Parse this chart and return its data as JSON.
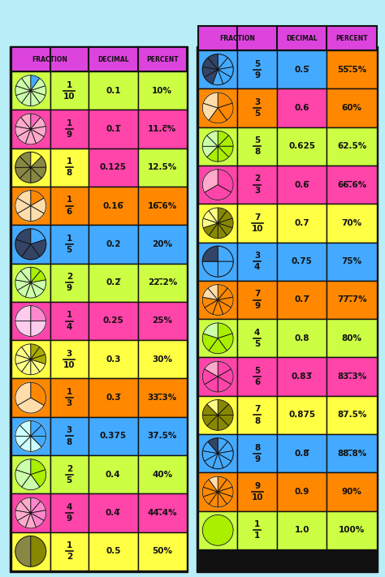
{
  "background_color": "#b8eef8",
  "header_color": "#dd44dd",
  "panel_left": {
    "rows": [
      {
        "fraction": [
          "1",
          "10"
        ],
        "decimal": "0.1",
        "percent": "10%",
        "colors": [
          "#ccff44",
          "#ccff44",
          "#ccff44",
          "#ccff44"
        ]
      },
      {
        "fraction": [
          "1",
          "9"
        ],
        "decimal": "0.1̅",
        "percent": "11.ᴄ̅%",
        "colors": [
          "#ff44aa",
          "#ff44aa",
          "#ff44aa",
          "#ff44aa"
        ]
      },
      {
        "fraction": [
          "1",
          "8"
        ],
        "decimal": "0.125",
        "percent": "12.5%",
        "colors": [
          "#ffff44",
          "#ffff44",
          "#ff44aa",
          "#ccff44"
        ]
      },
      {
        "fraction": [
          "1",
          "6"
        ],
        "decimal": "0.16̅",
        "percent": "16.̅6%",
        "colors": [
          "#ff8800",
          "#ff8800",
          "#ff8800",
          "#ff8800"
        ]
      },
      {
        "fraction": [
          "1",
          "5"
        ],
        "decimal": "0.2",
        "percent": "20%",
        "colors": [
          "#44aaff",
          "#44aaff",
          "#44aaff",
          "#44aaff"
        ]
      },
      {
        "fraction": [
          "2",
          "9"
        ],
        "decimal": "0.2̅",
        "percent": "22.̅2%",
        "colors": [
          "#ccff44",
          "#ccff44",
          "#ccff44",
          "#ccff44"
        ]
      },
      {
        "fraction": [
          "1",
          "4"
        ],
        "decimal": "0.25",
        "percent": "25%",
        "colors": [
          "#ff44aa",
          "#ff44aa",
          "#ff44aa",
          "#ff44aa"
        ]
      },
      {
        "fraction": [
          "3",
          "10"
        ],
        "decimal": "0.3",
        "percent": "30%",
        "colors": [
          "#ffff44",
          "#ffff44",
          "#ffff44",
          "#ffff44"
        ]
      },
      {
        "fraction": [
          "1",
          "3"
        ],
        "decimal": "0.3̅",
        "percent": "33.̅3%",
        "colors": [
          "#ff8800",
          "#ff8800",
          "#ff8800",
          "#ff8800"
        ]
      },
      {
        "fraction": [
          "3",
          "8"
        ],
        "decimal": "0.375",
        "percent": "37.5%",
        "colors": [
          "#44aaff",
          "#44aaff",
          "#44aaff",
          "#44aaff"
        ]
      },
      {
        "fraction": [
          "2",
          "5"
        ],
        "decimal": "0.4",
        "percent": "40%",
        "colors": [
          "#ccff44",
          "#ccff44",
          "#ccff44",
          "#ccff44"
        ]
      },
      {
        "fraction": [
          "4",
          "9"
        ],
        "decimal": "0.4̅",
        "percent": "44.̅4%",
        "colors": [
          "#ff44aa",
          "#ff44aa",
          "#ff44aa",
          "#ff44aa"
        ]
      },
      {
        "fraction": [
          "1",
          "2"
        ],
        "decimal": "0.5",
        "percent": "50%",
        "colors": [
          "#ffff44",
          "#ffff44",
          "#ffff44",
          "#ffff44"
        ]
      }
    ],
    "pie_numerators": [
      1,
      1,
      1,
      1,
      1,
      2,
      1,
      3,
      1,
      3,
      2,
      4,
      1
    ],
    "pie_denominators": [
      10,
      9,
      8,
      6,
      5,
      9,
      4,
      10,
      3,
      8,
      5,
      9,
      2
    ],
    "pie_fill": [
      "#44aaff",
      "#ff66bb",
      "#ffff44",
      "#ff8800",
      "#44aaff",
      "#aaee00",
      "#ff88cc",
      "#aaaa00",
      "#ff8800",
      "#44aaff",
      "#aaee00",
      "#ff88cc",
      "#888800"
    ],
    "pie_bg": [
      "#ccffaa",
      "#ffaacc",
      "#888844",
      "#ffddaa",
      "#334466",
      "#ccffaa",
      "#ffccee",
      "#ffff88",
      "#ffddaa",
      "#ccffff",
      "#ccffaa",
      "#ffaacc",
      "#888844"
    ]
  },
  "panel_right": {
    "rows": [
      {
        "fraction": [
          "5",
          "9"
        ],
        "decimal": "0.5̅",
        "percent": "55.̅5%",
        "colors": [
          "#44aaff",
          "#44aaff",
          "#44aaff",
          "#ff8800"
        ]
      },
      {
        "fraction": [
          "3",
          "5"
        ],
        "decimal": "0.6",
        "percent": "60%",
        "colors": [
          "#ff8800",
          "#ff8800",
          "#ff44aa",
          "#ff8800"
        ]
      },
      {
        "fraction": [
          "5",
          "8"
        ],
        "decimal": "0.625",
        "percent": "62.5%",
        "colors": [
          "#ccff44",
          "#ccff44",
          "#ccff44",
          "#ccff44"
        ]
      },
      {
        "fraction": [
          "2",
          "3"
        ],
        "decimal": "0.6̅",
        "percent": "66.̅6%",
        "colors": [
          "#ff44aa",
          "#ff44aa",
          "#ff44aa",
          "#ff44aa"
        ]
      },
      {
        "fraction": [
          "7",
          "10"
        ],
        "decimal": "0.7",
        "percent": "70%",
        "colors": [
          "#ffff44",
          "#ffff44",
          "#ffff44",
          "#ffff44"
        ]
      },
      {
        "fraction": [
          "3",
          "4"
        ],
        "decimal": "0.75",
        "percent": "75%",
        "colors": [
          "#44aaff",
          "#44aaff",
          "#44aaff",
          "#44aaff"
        ]
      },
      {
        "fraction": [
          "7",
          "9"
        ],
        "decimal": "0.7̅",
        "percent": "77.̅7%",
        "colors": [
          "#ff8800",
          "#ff8800",
          "#ff8800",
          "#ff8800"
        ]
      },
      {
        "fraction": [
          "4",
          "5"
        ],
        "decimal": "0.8",
        "percent": "80%",
        "colors": [
          "#ccff44",
          "#ccff44",
          "#ccff44",
          "#ccff44"
        ]
      },
      {
        "fraction": [
          "5",
          "6"
        ],
        "decimal": "0.83̅",
        "percent": "83.̅3%",
        "colors": [
          "#ff44aa",
          "#ff44aa",
          "#ff44aa",
          "#ff44aa"
        ]
      },
      {
        "fraction": [
          "7",
          "8"
        ],
        "decimal": "0.875",
        "percent": "87.5%",
        "colors": [
          "#ffff44",
          "#ffff44",
          "#ffff44",
          "#ffff44"
        ]
      },
      {
        "fraction": [
          "8",
          "9"
        ],
        "decimal": "0.8̅",
        "percent": "88.̅8%",
        "colors": [
          "#44aaff",
          "#44aaff",
          "#44aaff",
          "#44aaff"
        ]
      },
      {
        "fraction": [
          "9",
          "10"
        ],
        "decimal": "0.9",
        "percent": "90%",
        "colors": [
          "#ff8800",
          "#ff8800",
          "#ff8800",
          "#ff8800"
        ]
      },
      {
        "fraction": [
          "1",
          "1"
        ],
        "decimal": "1.0",
        "percent": "100%",
        "colors": [
          "#ccff44",
          "#ccff44",
          "#ccff44",
          "#ccff44"
        ]
      }
    ],
    "pie_numerators": [
      5,
      3,
      5,
      2,
      7,
      3,
      7,
      4,
      5,
      7,
      8,
      9,
      1
    ],
    "pie_denominators": [
      9,
      5,
      8,
      3,
      10,
      4,
      9,
      5,
      6,
      8,
      9,
      10,
      1
    ],
    "pie_fill": [
      "#44aaff",
      "#ff8800",
      "#aaee00",
      "#ff44aa",
      "#888800",
      "#44aaff",
      "#ff8800",
      "#aaee00",
      "#ff44aa",
      "#888800",
      "#44aaff",
      "#ff8800",
      "#aaee00"
    ],
    "pie_bg": [
      "#334466",
      "#ffddaa",
      "#ccffaa",
      "#ffaacc",
      "#ffff88",
      "#334466",
      "#ffddaa",
      "#ccffaa",
      "#ffaacc",
      "#ffff88",
      "#334466",
      "#ffddaa",
      "#ccffaa"
    ]
  }
}
